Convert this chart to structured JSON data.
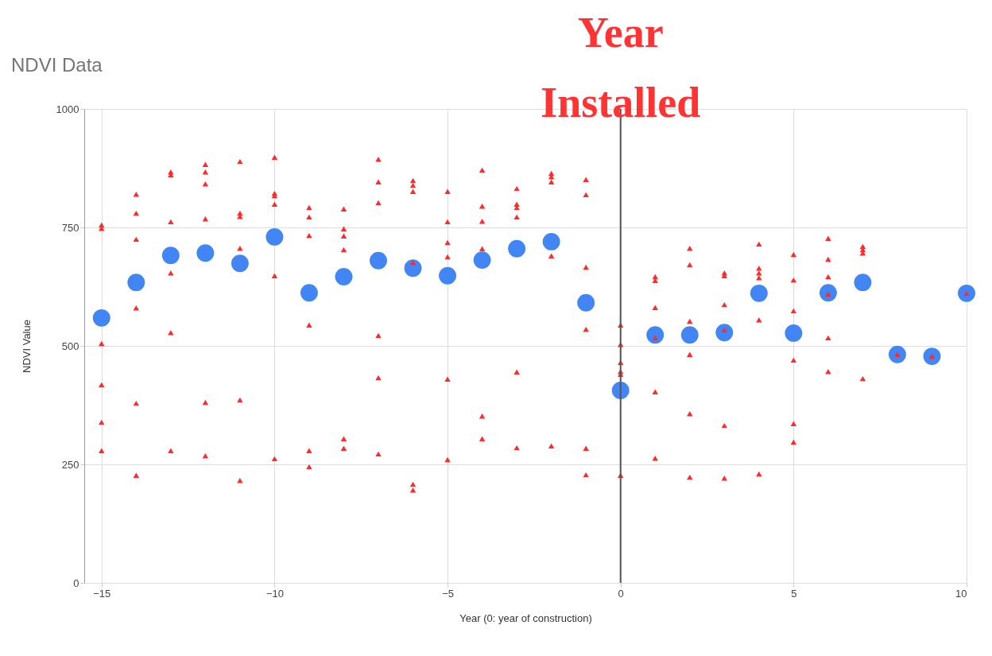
{
  "chart_data": {
    "type": "scatter",
    "title": "NDVI Data",
    "xlabel": "Year (0: year of construction)",
    "ylabel": "NDVI Value",
    "xlim": [
      -15.5,
      10
    ],
    "xticks": [
      -15,
      -10,
      -5,
      0,
      5,
      10
    ],
    "ylim": [
      0,
      1000
    ],
    "yticks": [
      0,
      250,
      500,
      750,
      1000
    ],
    "grid": true,
    "ref_lines": [
      {
        "axis": "x",
        "value": 0,
        "label": "Year Installed",
        "color": "#555555"
      }
    ],
    "series": [
      {
        "marker": "circle",
        "color": "#4285f4",
        "x": [
          -15,
          -14,
          -13,
          -12,
          -11,
          -10,
          -9,
          -8,
          -7,
          -6,
          -5,
          -4,
          -3,
          -2,
          -1,
          0,
          1,
          2,
          3,
          4,
          5,
          6,
          7,
          8,
          9,
          10
        ],
        "values": [
          559,
          634,
          691,
          696,
          674,
          730,
          612,
          646,
          680,
          664,
          648,
          681,
          705,
          720,
          591,
          406,
          523,
          523,
          528,
          611,
          527,
          612,
          634,
          482,
          478,
          611
        ]
      },
      {
        "marker": "triangle",
        "color": "#ff2a2a",
        "x": [
          -15,
          -15,
          -15,
          -15,
          -15,
          -15,
          -14,
          -14,
          -14,
          -14,
          -14,
          -14,
          -13,
          -13,
          -13,
          -13,
          -13,
          -13,
          -12,
          -12,
          -12,
          -12,
          -12,
          -12,
          -11,
          -11,
          -11,
          -11,
          -11,
          -11,
          -10,
          -10,
          -10,
          -10,
          -10,
          -10,
          -9,
          -9,
          -9,
          -9,
          -9,
          -9,
          -8,
          -8,
          -8,
          -8,
          -8,
          -8,
          -7,
          -7,
          -7,
          -7,
          -7,
          -7,
          -6,
          -6,
          -6,
          -6,
          -6,
          -6,
          -5,
          -5,
          -5,
          -5,
          -5,
          -5,
          -4,
          -4,
          -4,
          -4,
          -4,
          -4,
          -3,
          -3,
          -3,
          -3,
          -3,
          -3,
          -2,
          -2,
          -2,
          -2,
          -2,
          -1,
          -1,
          -1,
          -1,
          -1,
          -1,
          0,
          0,
          0,
          0,
          0,
          0,
          1,
          1,
          1,
          1,
          1,
          1,
          2,
          2,
          2,
          2,
          2,
          2,
          3,
          3,
          3,
          3,
          3,
          3,
          4,
          4,
          4,
          4,
          4,
          4,
          5,
          5,
          5,
          5,
          5,
          5,
          6,
          6,
          6,
          6,
          6,
          6,
          7,
          7,
          7,
          7,
          8,
          9,
          10
        ],
        "values": [
          755,
          748,
          505,
          418,
          339,
          279,
          820,
          780,
          725,
          580,
          379,
          227,
          867,
          861,
          762,
          654,
          528,
          279,
          883,
          867,
          842,
          768,
          381,
          268,
          889,
          780,
          773,
          706,
          386,
          216,
          898,
          822,
          817,
          799,
          648,
          262,
          792,
          772,
          733,
          544,
          279,
          245,
          789,
          747,
          732,
          703,
          304,
          284,
          894,
          846,
          802,
          522,
          433,
          272,
          849,
          839,
          826,
          676,
          208,
          196,
          826,
          762,
          718,
          688,
          430,
          260,
          871,
          795,
          763,
          705,
          352,
          304,
          832,
          799,
          792,
          772,
          445,
          285,
          864,
          857,
          846,
          690,
          289,
          851,
          819,
          666,
          535,
          284,
          228,
          544,
          503,
          465,
          446,
          440,
          227,
          646,
          638,
          581,
          517,
          403,
          263,
          706,
          671,
          552,
          482,
          357,
          223,
          654,
          648,
          587,
          534,
          332,
          221,
          715,
          664,
          654,
          644,
          555,
          230,
          693,
          639,
          574,
          470,
          336,
          297,
          727,
          683,
          646,
          609,
          517,
          446,
          710,
          703,
          696,
          431,
          482,
          478,
          611
        ]
      }
    ]
  }
}
